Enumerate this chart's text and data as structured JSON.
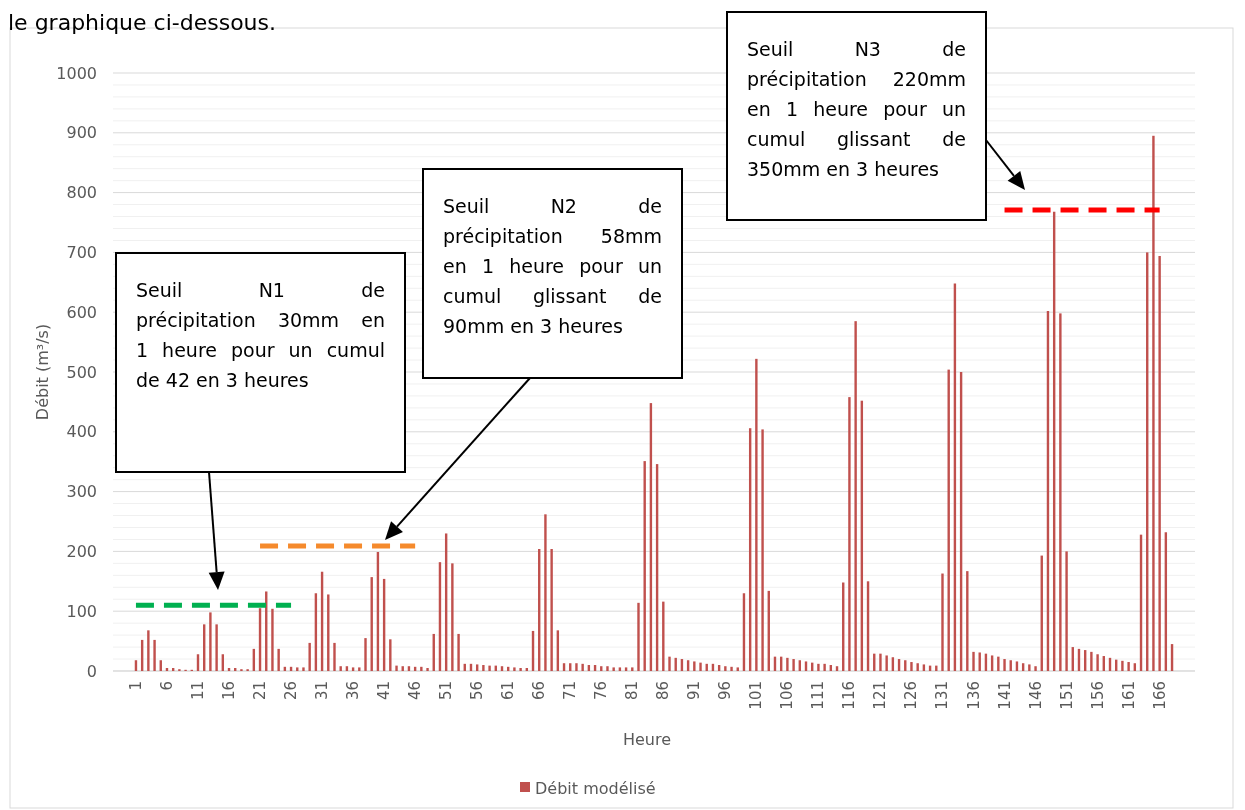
{
  "chart_data": {
    "type": "bar",
    "xlabel": "Heure",
    "ylabel": "Débit (m³/s)",
    "categories": [
      "1",
      null,
      null,
      null,
      null,
      "6",
      null,
      null,
      null,
      null,
      "11",
      null,
      null,
      null,
      null,
      "16",
      null,
      null,
      null,
      null,
      "21",
      null,
      null,
      null,
      null,
      "26",
      null,
      null,
      null,
      null,
      "31",
      null,
      null,
      null,
      null,
      "36",
      null,
      null,
      null,
      null,
      "41",
      null,
      null,
      null,
      null,
      "46",
      null,
      null,
      null,
      null,
      "51",
      null,
      null,
      null,
      null,
      "56",
      null,
      null,
      null,
      null,
      "61",
      null,
      null,
      null,
      null,
      "66",
      null,
      null,
      null,
      null,
      "71",
      null,
      null,
      null,
      null,
      "76",
      null,
      null,
      null,
      null,
      "81",
      null,
      null,
      null,
      null,
      "86",
      null,
      null,
      null,
      null,
      "91",
      null,
      null,
      null,
      null,
      "96",
      null,
      null,
      null,
      null,
      "101",
      null,
      null,
      null,
      null,
      "106",
      null,
      null,
      null,
      null,
      "111",
      null,
      null,
      null,
      null,
      "116",
      null,
      null,
      null,
      null,
      "121",
      null,
      null,
      null,
      null,
      "126",
      null,
      null,
      null,
      null,
      "131",
      null,
      null,
      null,
      null,
      "136",
      null,
      null,
      null,
      null,
      "141",
      null,
      null,
      null,
      null,
      "146",
      null,
      null,
      null,
      null,
      "151",
      null,
      null,
      null,
      null,
      "156",
      null,
      null,
      null,
      null,
      "161",
      null,
      null,
      null,
      null,
      "166",
      null,
      null
    ],
    "series": [
      {
        "name": "Débit modélisé",
        "color": "#c0504d",
        "values": [
          18,
          52,
          68,
          52,
          18,
          5,
          5,
          3,
          2,
          2,
          28,
          78,
          98,
          78,
          28,
          5,
          5,
          3,
          3,
          37,
          105,
          133,
          104,
          37,
          7,
          7,
          6,
          6,
          47,
          130,
          166,
          128,
          47,
          8,
          8,
          6,
          6,
          55,
          157,
          199,
          154,
          53,
          9,
          8,
          8,
          7,
          7,
          5,
          62,
          182,
          230,
          180,
          62,
          12,
          12,
          11,
          10,
          9,
          9,
          8,
          7,
          6,
          5,
          5,
          67,
          204,
          262,
          204,
          68,
          13,
          13,
          13,
          12,
          10,
          10,
          8,
          8,
          6,
          6,
          6,
          6,
          114,
          351,
          448,
          346,
          116,
          24,
          22,
          20,
          18,
          16,
          14,
          12,
          12,
          10,
          8,
          7,
          6,
          130,
          406,
          522,
          404,
          134,
          24,
          24,
          22,
          20,
          18,
          16,
          14,
          12,
          12,
          10,
          8,
          148,
          458,
          585,
          452,
          150,
          29,
          29,
          26,
          23,
          20,
          18,
          15,
          13,
          11,
          9,
          9,
          163,
          504,
          648,
          500,
          167,
          32,
          31,
          29,
          26,
          24,
          20,
          18,
          16,
          13,
          11,
          8,
          193,
          602,
          768,
          598,
          200,
          40,
          37,
          35,
          32,
          28,
          25,
          22,
          19,
          17,
          15,
          13,
          228,
          700,
          895,
          694,
          232,
          45
        ]
      },
      {
        "type": "line",
        "color": "#00b050",
        "line_style": "dashed",
        "marker": "none",
        "x": [
          "1",
          "26"
        ],
        "values": [
          110,
          110
        ]
      },
      {
        "type": "line",
        "color": "#f58a2c",
        "line_style": "dashed",
        "marker": "none",
        "x": [
          "21",
          "46"
        ],
        "values": [
          209,
          209
        ]
      },
      {
        "type": "line",
        "color": "#ff0000",
        "line_style": "dashed",
        "marker": "none",
        "x": [
          "141",
          "166"
        ],
        "values": [
          771,
          771
        ]
      }
    ],
    "ylim": [
      0,
      1000
    ],
    "yticks": [
      0,
      100,
      200,
      300,
      400,
      500,
      600,
      700,
      800,
      900,
      1000
    ],
    "grid": "y",
    "legend": "bottom",
    "annotations": [
      "le graphique ci-dessous.",
      "Seuil N1 de précipitation 30mm en 1 heure pour un cumul de 42 en 3 heures",
      "Seuil N2 de précipitation 58mm en 1 heure pour un cumul glissant de 90mm en 3 heures",
      "Seuil N3 de précipitation 220mm en 1 heure pour un cumul glissant de 350mm en 3 heures"
    ]
  }
}
